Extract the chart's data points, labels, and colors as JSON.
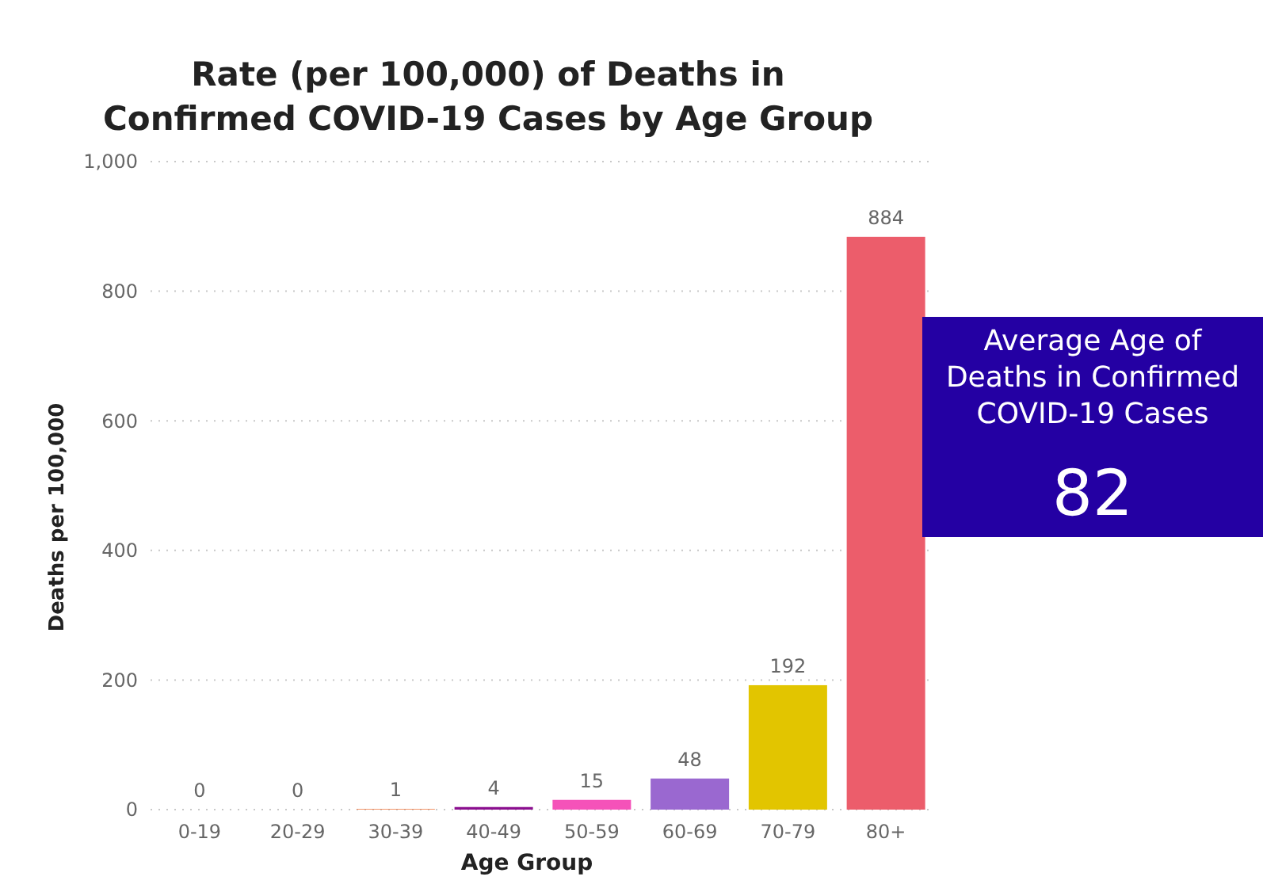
{
  "chart_data": [
    {
      "type": "bar",
      "title": "Rate (per 100,000) of Deaths in Confirmed COVID-19 Cases by Age Group",
      "xlabel": "Age Group",
      "ylabel": "Deaths per 100,000",
      "categories": [
        "0-19",
        "20-29",
        "30-39",
        "40-49",
        "50-59",
        "60-69",
        "70-79",
        "80+"
      ],
      "values": [
        0,
        0,
        1,
        4,
        15,
        48,
        192,
        884
      ],
      "colors": [
        "#118dff",
        "#3c3fb0",
        "#f07f4a",
        "#8b0f8f",
        "#f552b9",
        "#9a68d0",
        "#e2c500",
        "#ec5d6b"
      ],
      "ylim": [
        0,
        1000
      ],
      "yticks": [
        0,
        200,
        400,
        600,
        800,
        {
          "value": 1000,
          "label": "1,000"
        }
      ],
      "grid": "y",
      "data_labels": true
    },
    {
      "type": "other",
      "title": "Average Age of Deaths in Confirmed COVID-19 Cases",
      "annotations": [
        "82"
      ],
      "color": "#2400a3"
    }
  ]
}
